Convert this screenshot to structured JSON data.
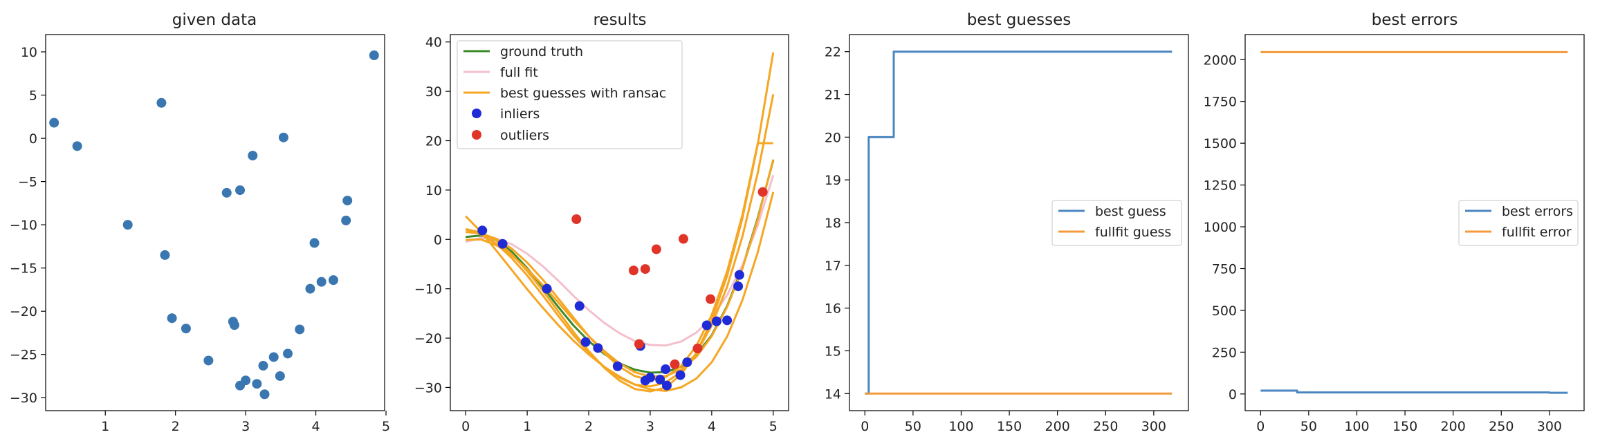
{
  "colors": {
    "scatter": "#3a76b0",
    "ground_truth": "#3a8a2a",
    "full_fit": "#f4bfcc",
    "ransac": "#f5a623",
    "inliers": "#1f2bd6",
    "outliers": "#e03428",
    "blue_line": "#4a86c0",
    "orange_line": "#f39a3d"
  },
  "chart_data": [
    {
      "type": "scatter",
      "title": "given data",
      "xlim": [
        0.15,
        4.98
      ],
      "ylim": [
        -31.5,
        12.0
      ],
      "xticks": [
        1,
        2,
        3,
        4,
        5
      ],
      "yticks": [
        10,
        5,
        0,
        -5,
        -10,
        -15,
        -20,
        -25,
        -30
      ],
      "xtick_labels": [
        "1",
        "2",
        "3",
        "4",
        "5"
      ],
      "ytick_labels": [
        "10",
        "5",
        "0",
        "−5",
        "−10",
        "−15",
        "−20",
        "−25",
        "−30"
      ],
      "grid": false,
      "points": [
        [
          0.27,
          1.8
        ],
        [
          0.6,
          -0.9
        ],
        [
          1.32,
          -10.0
        ],
        [
          1.8,
          4.1
        ],
        [
          1.85,
          -13.5
        ],
        [
          1.95,
          -20.8
        ],
        [
          2.15,
          -22.0
        ],
        [
          2.47,
          -25.7
        ],
        [
          2.73,
          -6.3
        ],
        [
          2.82,
          -21.2
        ],
        [
          2.84,
          -21.6
        ],
        [
          2.92,
          -6.0
        ],
        [
          2.92,
          -28.6
        ],
        [
          3.0,
          -28.0
        ],
        [
          3.1,
          -2.0
        ],
        [
          3.16,
          -28.4
        ],
        [
          3.25,
          -26.3
        ],
        [
          3.27,
          -29.6
        ],
        [
          3.4,
          -25.3
        ],
        [
          3.49,
          -27.5
        ],
        [
          3.54,
          0.1
        ],
        [
          3.6,
          -24.9
        ],
        [
          3.77,
          -22.1
        ],
        [
          3.92,
          -17.4
        ],
        [
          3.98,
          -12.1
        ],
        [
          4.08,
          -16.6
        ],
        [
          4.25,
          -16.4
        ],
        [
          4.43,
          -9.5
        ],
        [
          4.45,
          -7.2
        ],
        [
          4.83,
          9.6
        ]
      ]
    },
    {
      "type": "line",
      "title": "results",
      "xlim": [
        -0.25,
        5.25
      ],
      "ylim": [
        -34.7,
        41.5
      ],
      "xticks": [
        0,
        1,
        2,
        3,
        4,
        5
      ],
      "yticks": [
        40,
        30,
        20,
        10,
        0,
        -10,
        -20,
        -30
      ],
      "xtick_labels": [
        "0",
        "1",
        "2",
        "3",
        "4",
        "5"
      ],
      "ytick_labels": [
        "40",
        "30",
        "20",
        "10",
        "0",
        "−10",
        "−20",
        "−30"
      ],
      "legend": "top-left",
      "legend_entries": [
        "ground truth",
        "full fit",
        "best guesses with ransac",
        "inliers",
        "outliers"
      ],
      "grid": false,
      "series": [
        {
          "name": "ground truth",
          "kind": "line",
          "color": "#3a8a2a",
          "x": [
            0,
            0.25,
            0.5,
            0.75,
            1,
            1.25,
            1.5,
            1.75,
            2,
            2.25,
            2.5,
            2.75,
            3,
            3.25,
            3.5,
            3.75,
            4,
            4.25,
            4.5,
            4.75,
            5
          ],
          "y": [
            0.5,
            0.8,
            -0.2,
            -2.5,
            -5.8,
            -9.6,
            -13.6,
            -17.4,
            -20.6,
            -23.2,
            -25.1,
            -26.4,
            -27.0,
            -26.9,
            -25.8,
            -23.4,
            -19.4,
            -13.5,
            -5.6,
            4.4,
            16.0
          ]
        },
        {
          "name": "full fit",
          "kind": "line",
          "color": "#f4bfcc",
          "x": [
            0,
            0.25,
            0.5,
            0.75,
            1,
            1.25,
            1.5,
            1.75,
            2,
            2.25,
            2.5,
            2.75,
            3,
            3.25,
            3.5,
            3.75,
            4,
            4.25,
            4.5,
            4.75,
            5
          ],
          "y": [
            -0.5,
            0.3,
            0.1,
            -1.0,
            -2.9,
            -5.4,
            -8.3,
            -11.4,
            -14.3,
            -16.9,
            -19.0,
            -20.6,
            -21.4,
            -21.5,
            -20.7,
            -18.9,
            -15.8,
            -11.3,
            -5.2,
            2.9,
            13.0
          ]
        },
        {
          "name": "best guesses with ransac",
          "kind": "line",
          "color": "#f5a623",
          "x": [
            0,
            0.25,
            0.5,
            0.75,
            1,
            1.25,
            1.5,
            1.75,
            2,
            2.25,
            2.5,
            2.75,
            3,
            3.25,
            3.5,
            3.75,
            4,
            4.25,
            4.5,
            4.75,
            5
          ],
          "y": [
            4.7,
            1.5,
            -2.3,
            -6.2,
            -10.1,
            -13.8,
            -17.3,
            -20.5,
            -23.3,
            -25.8,
            -27.8,
            -29.4,
            -30.4,
            -30.7,
            -30.0,
            -28.2,
            -24.9,
            -19.7,
            -12.3,
            -2.6,
            9.6
          ]
        },
        {
          "name": "",
          "kind": "line",
          "color": "#f5a623",
          "x": [
            0,
            0.25,
            0.5,
            0.75,
            1,
            1.25,
            1.5,
            1.75,
            2,
            2.25,
            2.5,
            2.75,
            3,
            3.25,
            3.5,
            3.75,
            4,
            4.25,
            4.5,
            4.75,
            5
          ],
          "y": [
            2.0,
            1.0,
            -0.9,
            -3.8,
            -7.3,
            -11.3,
            -15.4,
            -19.4,
            -22.9,
            -25.8,
            -28.0,
            -29.4,
            -29.8,
            -29.0,
            -26.9,
            -23.1,
            -17.4,
            -9.6,
            0.6,
            13.5,
            29.4
          ]
        },
        {
          "name": "",
          "kind": "line",
          "color": "#f5a623",
          "x": [
            0,
            0.25,
            0.5,
            0.75,
            1,
            1.25,
            1.5,
            1.75,
            2,
            2.25,
            2.5,
            2.75,
            3,
            3.25,
            3.5,
            3.75,
            4,
            4.25,
            4.5,
            4.75,
            5
          ],
          "y": [
            2.1,
            1.4,
            -0.3,
            -3.0,
            -6.4,
            -10.3,
            -14.5,
            -18.7,
            -22.6,
            -26.0,
            -28.6,
            -30.3,
            -30.8,
            -30.0,
            -27.4,
            -23.0,
            -16.4,
            -7.4,
            4.3,
            19.3,
            37.9
          ]
        },
        {
          "name": "",
          "kind": "line",
          "color": "#f5a623",
          "x": [
            0,
            0.25,
            0.5,
            0.75,
            1,
            1.25,
            1.5,
            1.75,
            2,
            2.25,
            2.5,
            2.75,
            3,
            3.25,
            3.5,
            3.75,
            4,
            4.25,
            4.5,
            4.75,
            5
          ],
          "y": [
            -0.1,
            0.0,
            -1.2,
            -3.2,
            -6.0,
            -9.2,
            -12.7,
            -16.3,
            -19.6,
            -22.6,
            -25.1,
            -26.9,
            -27.8,
            -27.7,
            -26.4,
            -23.8,
            -19.6,
            -13.7,
            -5.9,
            4.1,
            16.2
          ]
        },
        {
          "name": "",
          "kind": "line",
          "color": "#f5a623",
          "x": [
            0,
            0.25,
            0.5,
            0.75,
            1,
            1.25,
            1.5,
            1.75,
            2,
            2.25,
            2.5,
            2.75,
            3,
            3.25,
            3.5,
            3.75,
            4,
            4.25,
            4.5,
            4.75,
            5
          ],
          "y": [
            1.5,
            1.2,
            0.1,
            -1.9,
            -4.7,
            -8.1,
            -11.9,
            -15.8,
            -19.6,
            -23.0,
            -25.8,
            -27.7,
            -28.5,
            -27.9,
            -25.7,
            -21.6,
            -15.3,
            -6.5,
            5.0,
            19.5,
            19.5
          ]
        },
        {
          "name": "inliers",
          "kind": "points",
          "color": "#1f2bd6",
          "points": [
            [
              0.27,
              1.8
            ],
            [
              0.6,
              -0.9
            ],
            [
              1.32,
              -10.0
            ],
            [
              1.85,
              -13.5
            ],
            [
              1.95,
              -20.8
            ],
            [
              2.15,
              -22.0
            ],
            [
              2.47,
              -25.7
            ],
            [
              2.84,
              -21.6
            ],
            [
              2.92,
              -28.6
            ],
            [
              3.0,
              -28.0
            ],
            [
              3.16,
              -28.4
            ],
            [
              3.25,
              -26.3
            ],
            [
              3.27,
              -29.6
            ],
            [
              3.49,
              -27.5
            ],
            [
              3.6,
              -24.9
            ],
            [
              3.92,
              -17.4
            ],
            [
              4.08,
              -16.6
            ],
            [
              4.25,
              -16.4
            ],
            [
              4.43,
              -9.5
            ],
            [
              4.45,
              -7.2
            ]
          ]
        },
        {
          "name": "outliers",
          "kind": "points",
          "color": "#e03428",
          "points": [
            [
              1.8,
              4.1
            ],
            [
              2.73,
              -6.3
            ],
            [
              2.82,
              -21.2
            ],
            [
              2.92,
              -6.0
            ],
            [
              3.1,
              -2.0
            ],
            [
              3.4,
              -25.3
            ],
            [
              3.54,
              0.1
            ],
            [
              3.77,
              -22.1
            ],
            [
              3.98,
              -12.1
            ],
            [
              4.83,
              9.6
            ]
          ]
        }
      ]
    },
    {
      "type": "line",
      "title": "best guesses",
      "xlim": [
        -16,
        336
      ],
      "ylim": [
        13.6,
        22.4
      ],
      "xticks": [
        0,
        50,
        100,
        150,
        200,
        250,
        300
      ],
      "yticks": [
        22,
        21,
        20,
        19,
        18,
        17,
        16,
        15,
        14
      ],
      "xtick_labels": [
        "0",
        "50",
        "100",
        "150",
        "200",
        "250",
        "300"
      ],
      "ytick_labels": [
        "22",
        "21",
        "20",
        "19",
        "18",
        "17",
        "16",
        "15",
        "14"
      ],
      "legend": "center-right",
      "legend_entries": [
        "best guess",
        "fullfit guess"
      ],
      "grid": false,
      "series": [
        {
          "name": "best guess",
          "kind": "step",
          "color": "#4a86c0",
          "x": [
            0,
            4,
            4,
            30,
            30,
            319
          ],
          "y": [
            14,
            14,
            20,
            20,
            22,
            22
          ]
        },
        {
          "name": "fullfit guess",
          "kind": "line",
          "color": "#f39a3d",
          "x": [
            0,
            319
          ],
          "y": [
            14,
            14
          ]
        }
      ]
    },
    {
      "type": "line",
      "title": "best errors",
      "xlim": [
        -16,
        336
      ],
      "ylim": [
        -100,
        2150
      ],
      "xticks": [
        0,
        50,
        100,
        150,
        200,
        250,
        300
      ],
      "yticks": [
        2000,
        1750,
        1500,
        1250,
        1000,
        750,
        500,
        250,
        0
      ],
      "xtick_labels": [
        "0",
        "50",
        "100",
        "150",
        "200",
        "250",
        "300"
      ],
      "ytick_labels": [
        "2000",
        "1750",
        "1500",
        "1250",
        "1000",
        "750",
        "500",
        "250",
        "0"
      ],
      "legend": "center-right",
      "legend_entries": [
        "best errors",
        "fullfit error"
      ],
      "grid": false,
      "series": [
        {
          "name": "best errors",
          "kind": "step",
          "color": "#4a86c0",
          "x": [
            0,
            38,
            38,
            300,
            300,
            319
          ],
          "y": [
            20,
            20,
            9,
            9,
            7,
            7
          ]
        },
        {
          "name": "fullfit error",
          "kind": "line",
          "color": "#f39a3d",
          "x": [
            0,
            319
          ],
          "y": [
            2045,
            2045
          ]
        }
      ]
    }
  ]
}
